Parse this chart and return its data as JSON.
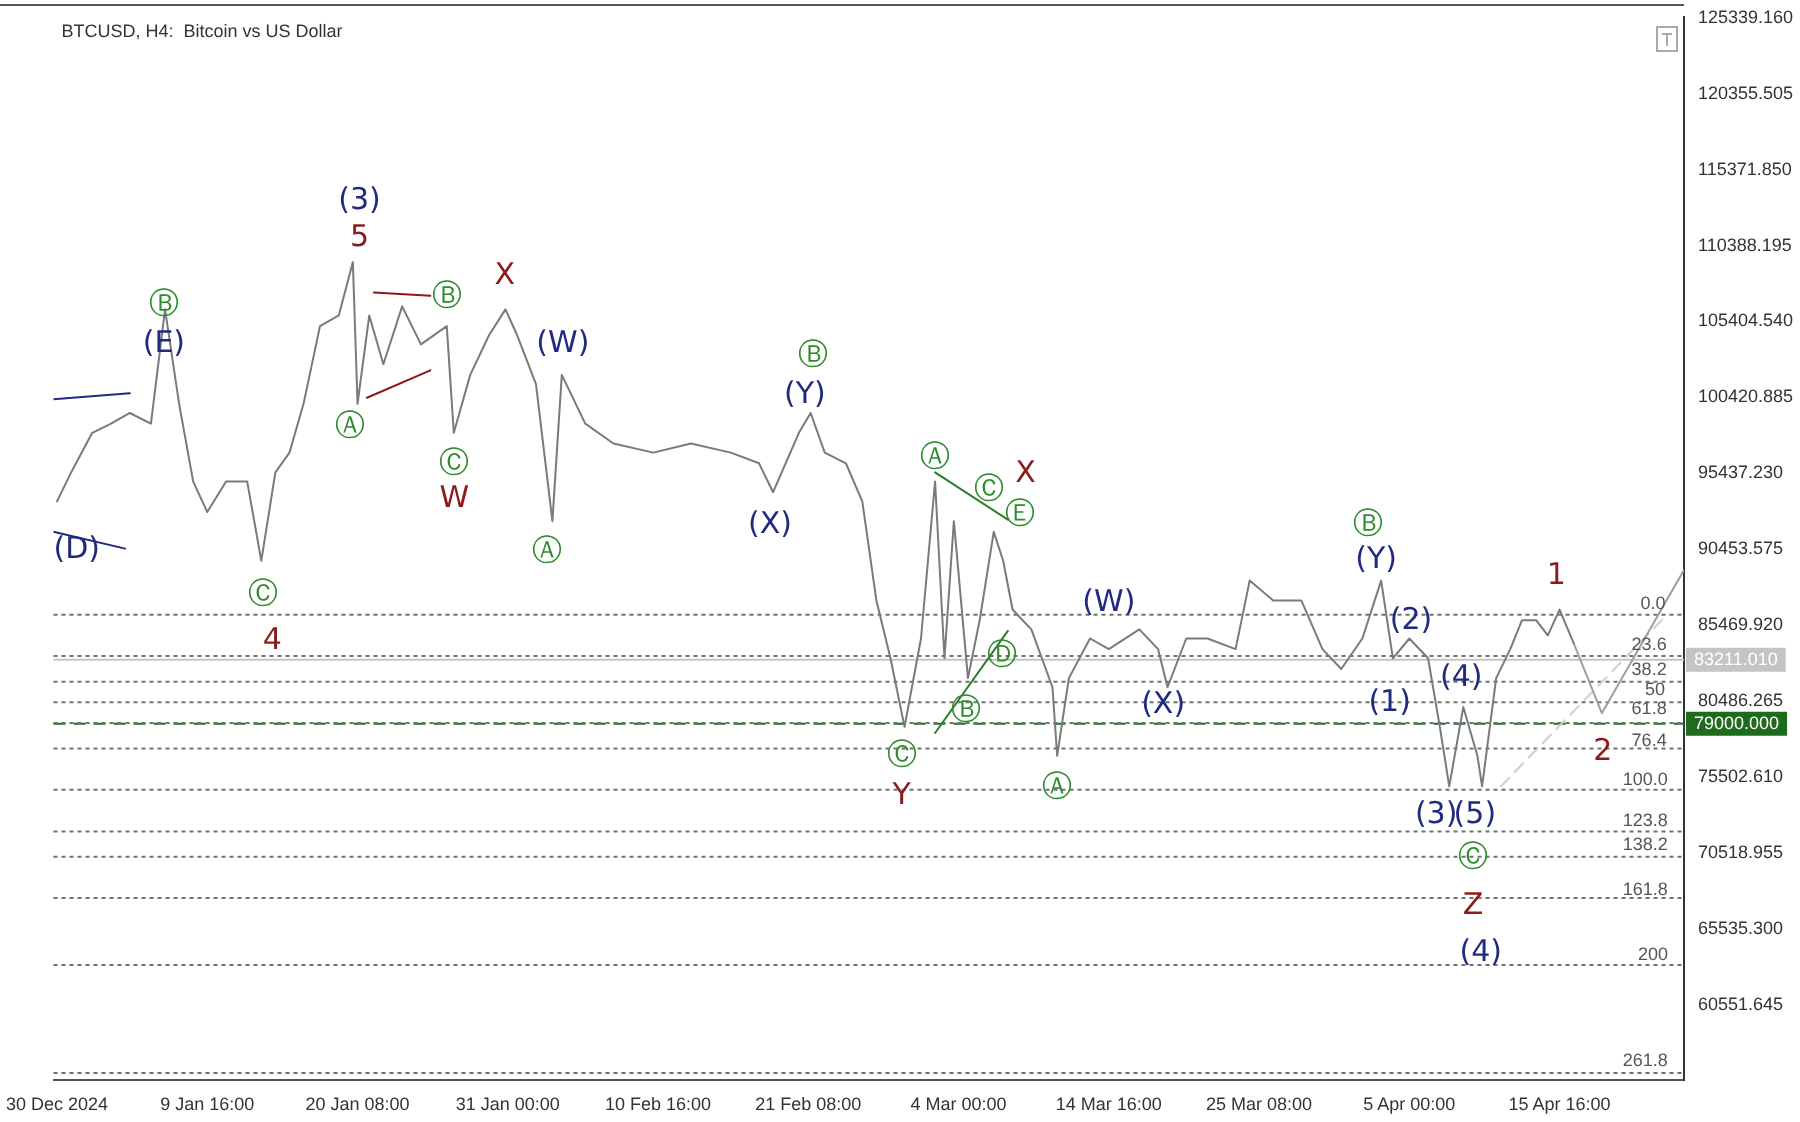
{
  "chart_data": {
    "type": "line",
    "title": "BTCUSD, H4:  Bitcoin vs US Dollar",
    "xlim": [
      "2024-12-29T18:00",
      "2025-04-24T12:00"
    ],
    "xticks": [
      {
        "value": "2024-12-30T00:00",
        "label": "30 Dec 2024"
      },
      {
        "value": "2025-01-09T16:00",
        "label": "9 Jan 16:00"
      },
      {
        "value": "2025-01-20T08:00",
        "label": "20 Jan 08:00"
      },
      {
        "value": "2025-01-31T00:00",
        "label": "31 Jan 00:00"
      },
      {
        "value": "2025-02-10T16:00",
        "label": "10 Feb 16:00"
      },
      {
        "value": "2025-02-21T08:00",
        "label": "21 Feb 08:00"
      },
      {
        "value": "2025-03-04T00:00",
        "label": "4 Mar 00:00"
      },
      {
        "value": "2025-03-14T16:00",
        "label": "14 Mar 16:00"
      },
      {
        "value": "2025-03-25T08:00",
        "label": "25 Mar 08:00"
      },
      {
        "value": "2025-04-05T00:00",
        "label": "5 Apr 00:00"
      },
      {
        "value": "2025-04-15T16:00",
        "label": "15 Apr 16:00"
      }
    ],
    "ylim": [
      55600,
      125400
    ],
    "yticks": [
      {
        "value": 125339.16,
        "label": "125339.160"
      },
      {
        "value": 120355.505,
        "label": "120355.505"
      },
      {
        "value": 115371.85,
        "label": "115371.850"
      },
      {
        "value": 110388.195,
        "label": "110388.195"
      },
      {
        "value": 105404.54,
        "label": "105404.540"
      },
      {
        "value": 100420.885,
        "label": "100420.885"
      },
      {
        "value": 95437.23,
        "label": "95437.230"
      },
      {
        "value": 90453.575,
        "label": "90453.575"
      },
      {
        "value": 85469.92,
        "label": "85469.920"
      },
      {
        "value": 80486.265,
        "label": "80486.265"
      },
      {
        "value": 75502.61,
        "label": "75502.610"
      },
      {
        "value": 70518.955,
        "label": "70518.955"
      },
      {
        "value": 65535.3,
        "label": "65535.300"
      },
      {
        "value": 60551.645,
        "label": "60551.645"
      }
    ],
    "grid": false,
    "legend": false,
    "marker": "none",
    "series": [
      {
        "color": "#7a7a7a",
        "x": [
          "2024-12-30T00:00",
          "2024-12-31T00:00",
          "2025-01-01T12:00",
          "2025-01-02T20:00",
          "2025-01-04T04:00",
          "2025-01-05T16:00",
          "2025-01-06T16:00",
          "2025-01-07T16:00",
          "2025-01-08T16:00",
          "2025-01-09T16:00",
          "2025-01-11T00:00",
          "2025-01-12T12:00",
          "2025-01-13T12:00",
          "2025-01-14T12:00",
          "2025-01-15T12:00",
          "2025-01-16T12:00",
          "2025-01-17T16:00",
          "2025-01-19T00:00",
          "2025-01-20T00:00",
          "2025-01-20T08:00",
          "2025-01-21T04:00",
          "2025-01-22T04:00",
          "2025-01-23T12:00",
          "2025-01-24T20:00",
          "2025-01-26T16:00",
          "2025-01-27T04:00",
          "2025-01-28T08:00",
          "2025-01-29T16:00",
          "2025-01-30T20:00",
          "2025-01-31T16:00",
          "2025-02-02T00:00",
          "2025-02-03T04:00",
          "2025-02-03T20:00",
          "2025-02-05T12:00",
          "2025-02-07T12:00",
          "2025-02-10T08:00",
          "2025-02-13T00:00",
          "2025-02-15T20:00",
          "2025-02-17T20:00",
          "2025-02-18T20:00",
          "2025-02-20T16:00",
          "2025-02-21T12:00",
          "2025-02-22T12:00",
          "2025-02-24T00:00",
          "2025-02-25T04:00",
          "2025-02-26T04:00",
          "2025-02-27T04:00",
          "2025-02-28T04:00",
          "2025-03-01T08:00",
          "2025-03-02T08:00",
          "2025-03-03T00:00",
          "2025-03-03T16:00",
          "2025-03-04T16:00",
          "2025-03-05T12:00",
          "2025-03-06T12:00",
          "2025-03-07T04:00",
          "2025-03-07T20:00",
          "2025-03-09T04:00",
          "2025-03-10T16:00",
          "2025-03-11T00:00",
          "2025-03-11T20:00",
          "2025-03-13T08:00",
          "2025-03-14T16:00",
          "2025-03-16T20:00",
          "2025-03-18T04:00",
          "2025-03-18T20:00",
          "2025-03-20T04:00",
          "2025-03-21T16:00",
          "2025-03-23T16:00",
          "2025-03-24T16:00",
          "2025-03-26T08:00",
          "2025-03-28T08:00",
          "2025-03-29T20:00",
          "2025-03-31T04:00",
          "2025-04-01T16:00",
          "2025-04-03T00:00",
          "2025-04-03T20:00",
          "2025-04-05T00:00",
          "2025-04-06T08:00",
          "2025-04-07T04:00",
          "2025-04-07T20:00",
          "2025-04-08T20:00",
          "2025-04-09T20:00",
          "2025-04-10T04:00",
          "2025-04-11T04:00",
          "2025-04-12T04:00",
          "2025-04-13T00:00",
          "2025-04-14T00:00",
          "2025-04-14T20:00",
          "2025-04-15T16:00",
          "2025-04-16T16:00"
        ],
        "values": [
          93600,
          95500,
          98100,
          98700,
          99400,
          98700,
          106200,
          100000,
          94900,
          92900,
          94900,
          94900,
          89700,
          95500,
          96800,
          100000,
          105100,
          105800,
          109300,
          100000,
          105800,
          102600,
          106400,
          103900,
          105100,
          98100,
          101900,
          104500,
          106200,
          104500,
          101300,
          92300,
          101900,
          98700,
          97400,
          96800,
          97400,
          96800,
          96100,
          94200,
          98100,
          99400,
          96800,
          96100,
          93600,
          87100,
          83300,
          78800,
          84600,
          94900,
          83300,
          92300,
          82000,
          85800,
          91600,
          89700,
          86500,
          85200,
          81400,
          76900,
          82000,
          84600,
          83900,
          85200,
          83900,
          81400,
          84600,
          84600,
          83900,
          88400,
          87100,
          87100,
          83900,
          82600,
          84600,
          88400,
          83300,
          84600,
          83300,
          78800,
          74900,
          80100,
          76900,
          74900,
          82000,
          83900,
          85800,
          85800,
          84800,
          86500,
          84300
        ]
      },
      {
        "color": "#9e9e9e",
        "x": [
          "2025-04-16T16:00",
          "2025-04-18T16:00",
          "2025-04-24T12:00"
        ],
        "values": [
          84300,
          79700,
          89100
        ]
      },
      {
        "color": "#1f2a80",
        "x": [
          "2024-12-29T18:00",
          "2025-01-04T04:00"
        ],
        "values": [
          100300,
          100700
        ]
      },
      {
        "color": "#1f2a80",
        "x": [
          "2024-12-29T18:00",
          "2025-01-03T20:00"
        ],
        "values": [
          91600,
          90500
        ]
      },
      {
        "color": "#8b1a1a",
        "x": [
          "2025-01-21T12:00",
          "2025-01-25T12:00"
        ],
        "values": [
          107300,
          107100
        ]
      },
      {
        "color": "#8b1a1a",
        "x": [
          "2025-01-21T00:00",
          "2025-01-25T12:00"
        ],
        "values": [
          100400,
          102200
        ]
      },
      {
        "color": "#2e7d2e",
        "x": [
          "2025-03-02T08:00",
          "2025-03-07T12:00"
        ],
        "values": [
          95500,
          92400
        ]
      },
      {
        "color": "#2e7d2e",
        "x": [
          "2025-03-02T08:00",
          "2025-03-07T12:00"
        ],
        "values": [
          78400,
          85100
        ]
      },
      {
        "color": "#cfcfcf",
        "line_style": "dashed",
        "x": [
          "2025-04-11T12:00",
          "2025-04-23T08:00"
        ],
        "values": [
          74900,
          86200
        ]
      }
    ],
    "ref_lines": [
      {
        "axis": "y",
        "value": 83211.01,
        "label": "83211.010",
        "color": "#c4c4c4",
        "line_style": "solid"
      },
      {
        "axis": "y",
        "value": 79000,
        "label": "79000.000",
        "color": "#1e6b1e",
        "line_style": "dashed"
      },
      {
        "axis": "y",
        "value": 86160,
        "color": "#707070",
        "line_style": "dotted"
      },
      {
        "axis": "y",
        "value": 83450,
        "color": "#707070",
        "line_style": "dotted"
      },
      {
        "axis": "y",
        "value": 81770,
        "color": "#707070",
        "line_style": "dotted"
      },
      {
        "axis": "y",
        "value": 80420,
        "color": "#707070",
        "line_style": "dotted"
      },
      {
        "axis": "y",
        "value": 79060,
        "color": "#707070",
        "line_style": "dotted"
      },
      {
        "axis": "y",
        "value": 77380,
        "color": "#707070",
        "line_style": "dotted"
      },
      {
        "axis": "y",
        "value": 74670,
        "color": "#707070",
        "line_style": "dotted"
      },
      {
        "axis": "y",
        "value": 71940,
        "color": "#707070",
        "line_style": "dotted"
      },
      {
        "axis": "y",
        "value": 70280,
        "color": "#707070",
        "line_style": "dotted"
      },
      {
        "axis": "y",
        "value": 67570,
        "color": "#707070",
        "line_style": "dotted"
      },
      {
        "axis": "y",
        "value": 63180,
        "color": "#707070",
        "line_style": "dotted"
      },
      {
        "axis": "y",
        "value": 56080,
        "color": "#707070",
        "line_style": "dotted"
      }
    ],
    "annotations": [
      "(D)",
      "Ⓑ",
      "(E)",
      "Ⓒ",
      "4",
      "(3)",
      "5",
      "Ⓐ",
      "Ⓑ",
      "Ⓒ",
      "W",
      "X",
      "(W)",
      "Ⓐ",
      "Ⓑ",
      "(Y)",
      "(X)",
      "Ⓐ",
      "Ⓒ",
      "X",
      "Ⓔ",
      "Ⓓ",
      "Ⓑ",
      "Ⓒ",
      "Y",
      "Ⓐ",
      "(W)",
      "(X)",
      "Ⓑ",
      "(Y)",
      "(2)",
      "(1)",
      "(4)",
      "(3)",
      "(5)",
      "Ⓒ",
      "Z",
      "(4)",
      "1",
      "2",
      "0.0",
      "23.6",
      "38.2",
      "50",
      "61.8",
      "76.4",
      "100.0",
      "123.8",
      "138.2",
      "161.8",
      "200",
      "261.8"
    ]
  }
}
